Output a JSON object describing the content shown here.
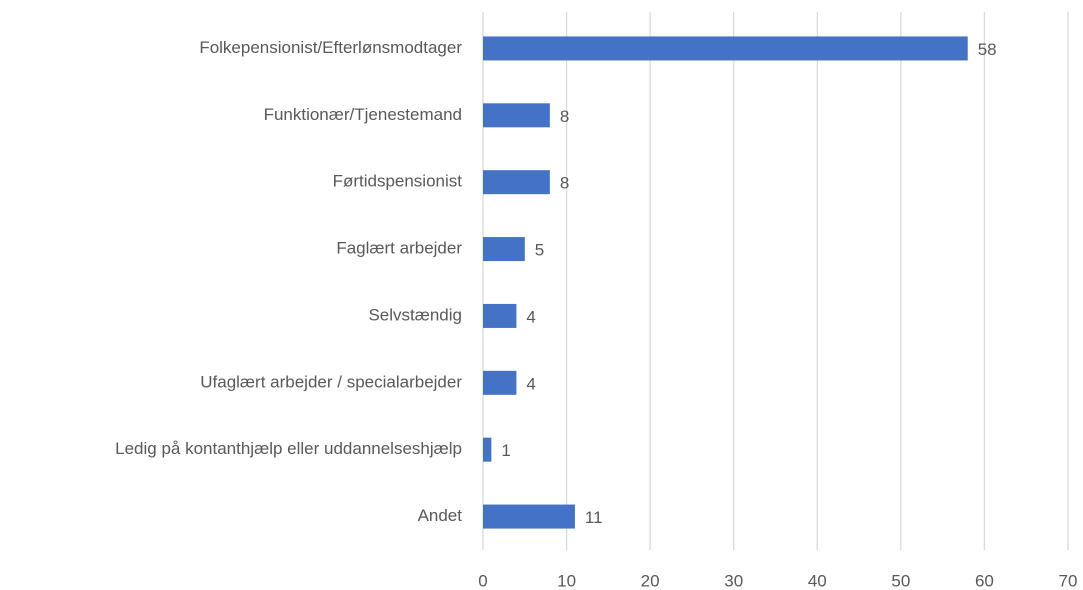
{
  "chart_data": {
    "type": "bar",
    "orientation": "horizontal",
    "categories": [
      "Folkepensionist/Efterlønsmodtager",
      "Funktionær/Tjenestemand",
      "Førtidspensionist",
      "Faglært arbejder",
      "Selvstændig",
      "Ufaglært arbejder / specialarbejder",
      "Ledig på kontanthjælp eller uddannelseshjælp",
      "Andet"
    ],
    "values": [
      58,
      8,
      8,
      5,
      4,
      4,
      1,
      11
    ],
    "color": "#4472c4",
    "xlim": [
      0,
      70
    ],
    "xticks": [
      0,
      10,
      20,
      30,
      40,
      50,
      60,
      70
    ],
    "grid": true
  }
}
